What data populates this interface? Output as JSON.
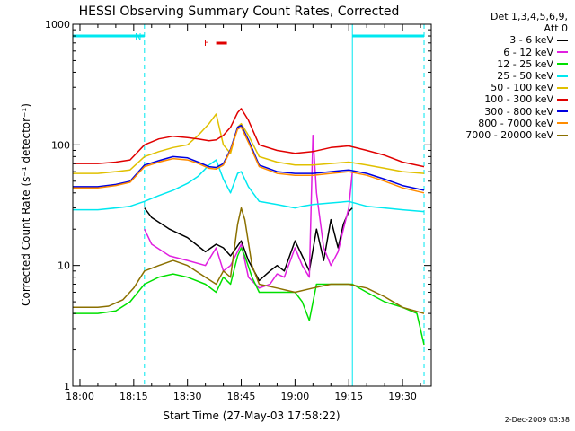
{
  "chart_data": {
    "type": "line",
    "title": "HESSI Observing Summary Count Rates, Corrected",
    "xlabel": "Start Time (27-May-03 17:58:22)",
    "ylabel": "Corrected Count Rate (s⁻¹ detector⁻¹)",
    "y_scale": "log",
    "ylim": [
      1,
      1000
    ],
    "xlim_minutes": [
      -2,
      98
    ],
    "x_tick_labels": [
      "18:00",
      "18:15",
      "18:30",
      "18:45",
      "19:00",
      "19:15",
      "19:30"
    ],
    "y_tick_labels": [
      "1",
      "10",
      "100",
      "1000"
    ],
    "legend_header": [
      "Det 1,3,4,5,6,9,",
      "Att 0"
    ],
    "legend_placement": "right",
    "annotations": {
      "n_marker": "N",
      "flare_marker": "F",
      "night_intervals_minutes": [
        [
          -2,
          18
        ],
        [
          76,
          96
        ]
      ],
      "flare_interval_minutes": [
        38,
        41
      ]
    },
    "series": [
      {
        "name": "3 - 6 keV",
        "color": "#000000",
        "x": [
          18,
          20,
          25,
          30,
          35,
          38,
          40,
          42,
          45,
          47,
          50,
          53,
          55,
          57,
          60,
          62,
          64,
          66,
          68,
          70,
          72,
          73.5,
          75,
          76
        ],
        "y": [
          30,
          25,
          20,
          17,
          13,
          15,
          14,
          12,
          16,
          11,
          7.5,
          9,
          10,
          9,
          16,
          12,
          9,
          20,
          11,
          24,
          14,
          22,
          28,
          30
        ]
      },
      {
        "name": "6 - 12 keV",
        "color": "#e020e0",
        "x": [
          18,
          20,
          25,
          30,
          35,
          38,
          40,
          42,
          45,
          47,
          50,
          53,
          55,
          57,
          60,
          62,
          64,
          65,
          66,
          68,
          70,
          72,
          73.5,
          75,
          76
        ],
        "y": [
          20,
          15,
          12,
          11,
          10,
          14,
          9,
          10,
          15,
          8,
          6.5,
          7,
          8.5,
          8,
          14,
          10,
          8,
          120,
          40,
          14,
          10,
          13,
          20,
          30,
          60
        ]
      },
      {
        "name": "12 - 25 keV",
        "color": "#00e000",
        "x": [
          -2,
          5,
          10,
          14,
          18,
          22,
          26,
          30,
          35,
          38,
          40,
          42,
          44,
          45,
          46,
          48,
          50,
          55,
          60,
          62,
          64,
          66,
          68,
          72,
          76,
          80,
          85,
          90,
          94,
          96
        ],
        "y": [
          4,
          4,
          4.2,
          5,
          7,
          8,
          8.5,
          8,
          7,
          6,
          8,
          7,
          12,
          14,
          12,
          8,
          6,
          6,
          6,
          5,
          3.5,
          7,
          7,
          7,
          7,
          6,
          5,
          4.5,
          4,
          2.2
        ]
      },
      {
        "name": "25 - 50 keV",
        "color": "#00e8f0",
        "x": [
          -2,
          5,
          10,
          14,
          18,
          22,
          26,
          30,
          33,
          36,
          38,
          40,
          42,
          44,
          45,
          47,
          50,
          55,
          60,
          62,
          65,
          70,
          75,
          80,
          85,
          90,
          96
        ],
        "y": [
          29,
          29,
          30,
          31,
          34,
          38,
          42,
          48,
          55,
          68,
          75,
          52,
          40,
          58,
          60,
          45,
          34,
          32,
          30,
          31,
          32,
          33,
          34,
          31,
          30,
          29,
          28
        ]
      },
      {
        "name": "50 - 100 keV",
        "color": "#e0c000",
        "x": [
          -2,
          5,
          10,
          14,
          18,
          22,
          26,
          30,
          33,
          36,
          38,
          40,
          42,
          44,
          45,
          47,
          50,
          55,
          60,
          65,
          70,
          75,
          80,
          85,
          90,
          96
        ],
        "y": [
          58,
          58,
          60,
          62,
          80,
          88,
          95,
          100,
          120,
          150,
          180,
          100,
          85,
          140,
          150,
          120,
          80,
          72,
          68,
          68,
          70,
          72,
          68,
          64,
          60,
          58
        ]
      },
      {
        "name": "100 - 300 keV",
        "color": "#e00000",
        "x": [
          -2,
          5,
          10,
          14,
          18,
          22,
          26,
          30,
          33,
          36,
          38,
          40,
          42,
          44,
          45,
          47,
          50,
          55,
          60,
          65,
          70,
          75,
          80,
          85,
          90,
          96
        ],
        "y": [
          70,
          70,
          72,
          75,
          100,
          112,
          118,
          115,
          112,
          108,
          110,
          120,
          140,
          185,
          200,
          160,
          100,
          90,
          85,
          88,
          95,
          98,
          90,
          82,
          72,
          66
        ]
      },
      {
        "name": "300 - 800 keV",
        "color": "#0000e0",
        "x": [
          -2,
          5,
          10,
          14,
          18,
          22,
          26,
          30,
          33,
          36,
          38,
          40,
          42,
          44,
          45,
          47,
          50,
          55,
          60,
          65,
          70,
          75,
          80,
          85,
          90,
          96
        ],
        "y": [
          45,
          45,
          47,
          50,
          68,
          74,
          80,
          78,
          72,
          66,
          65,
          70,
          92,
          140,
          145,
          110,
          68,
          60,
          58,
          58,
          60,
          62,
          58,
          52,
          46,
          42
        ]
      },
      {
        "name": "800 - 7000 keV",
        "color": "#ff8c00",
        "x": [
          -2,
          5,
          10,
          14,
          18,
          22,
          26,
          30,
          33,
          36,
          38,
          40,
          42,
          44,
          45,
          47,
          50,
          55,
          60,
          65,
          70,
          75,
          80,
          85,
          90,
          96
        ],
        "y": [
          44,
          44,
          46,
          49,
          66,
          72,
          77,
          75,
          70,
          64,
          63,
          68,
          90,
          135,
          140,
          105,
          66,
          58,
          56,
          56,
          58,
          60,
          56,
          50,
          44,
          40
        ]
      },
      {
        "name": "7000 - 20000 keV",
        "color": "#8b7000",
        "x": [
          -2,
          5,
          8,
          12,
          15,
          18,
          22,
          26,
          30,
          35,
          38,
          40,
          42,
          44,
          45,
          46,
          48,
          50,
          55,
          60,
          65,
          70,
          75,
          80,
          85,
          90,
          96
        ],
        "y": [
          4.5,
          4.5,
          4.6,
          5.2,
          6.5,
          9,
          10,
          11,
          10,
          8,
          7,
          9,
          8,
          22,
          30,
          24,
          10,
          7,
          6.5,
          6,
          6.5,
          7,
          7,
          6.5,
          5.5,
          4.5,
          4
        ]
      }
    ]
  },
  "timestamp": "2-Dec-2009 03:38"
}
